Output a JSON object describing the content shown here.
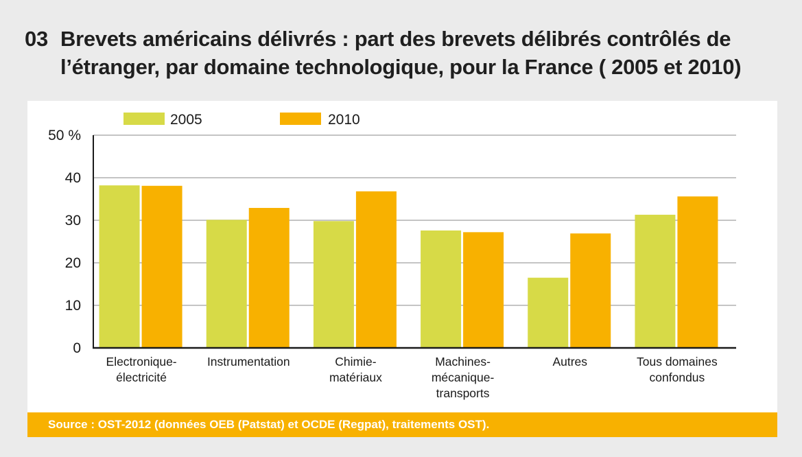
{
  "header": {
    "number": "03",
    "title_line1": "Brevets américains délivrés : part des brevets délibrés contrôlés de",
    "title_line2": "l’étranger, par domaine technologique, pour la France ( 2005 et 2010)"
  },
  "source": "Source : OST-2012 (données OEB (Patstat) et OCDE (Regpat), traitements OST).",
  "colors": {
    "s2005": "#d7da47",
    "s2010": "#f8b100",
    "grid": "#c4c4c4",
    "axis": "#1a1a1a"
  },
  "chart_data": {
    "type": "bar",
    "title": "Brevets américains délivrés : part des brevets délibrés contrôlés de l’étranger, par domaine technologique, pour la France ( 2005 et 2010)",
    "xlabel": "",
    "ylabel": "%",
    "ylim": [
      0,
      50
    ],
    "yticks": [
      0,
      10,
      20,
      30,
      40,
      50
    ],
    "ytick_labels": [
      "0",
      "10",
      "20",
      "30",
      "40",
      "50 %"
    ],
    "grid": true,
    "legend_position": "top-left",
    "categories": [
      [
        "Electronique-",
        "électricité"
      ],
      [
        "Instrumentation"
      ],
      [
        "Chimie-",
        "matériaux"
      ],
      [
        "Machines-",
        "mécanique-",
        "transports"
      ],
      [
        "Autres"
      ],
      [
        "Tous domaines",
        "confondus"
      ]
    ],
    "series": [
      {
        "name": "2005",
        "color": "#d7da47",
        "values": [
          38.2,
          30.1,
          29.8,
          27.6,
          16.5,
          31.3
        ]
      },
      {
        "name": "2010",
        "color": "#f8b100",
        "values": [
          38.1,
          32.9,
          36.8,
          27.2,
          26.9,
          35.6
        ]
      }
    ]
  }
}
